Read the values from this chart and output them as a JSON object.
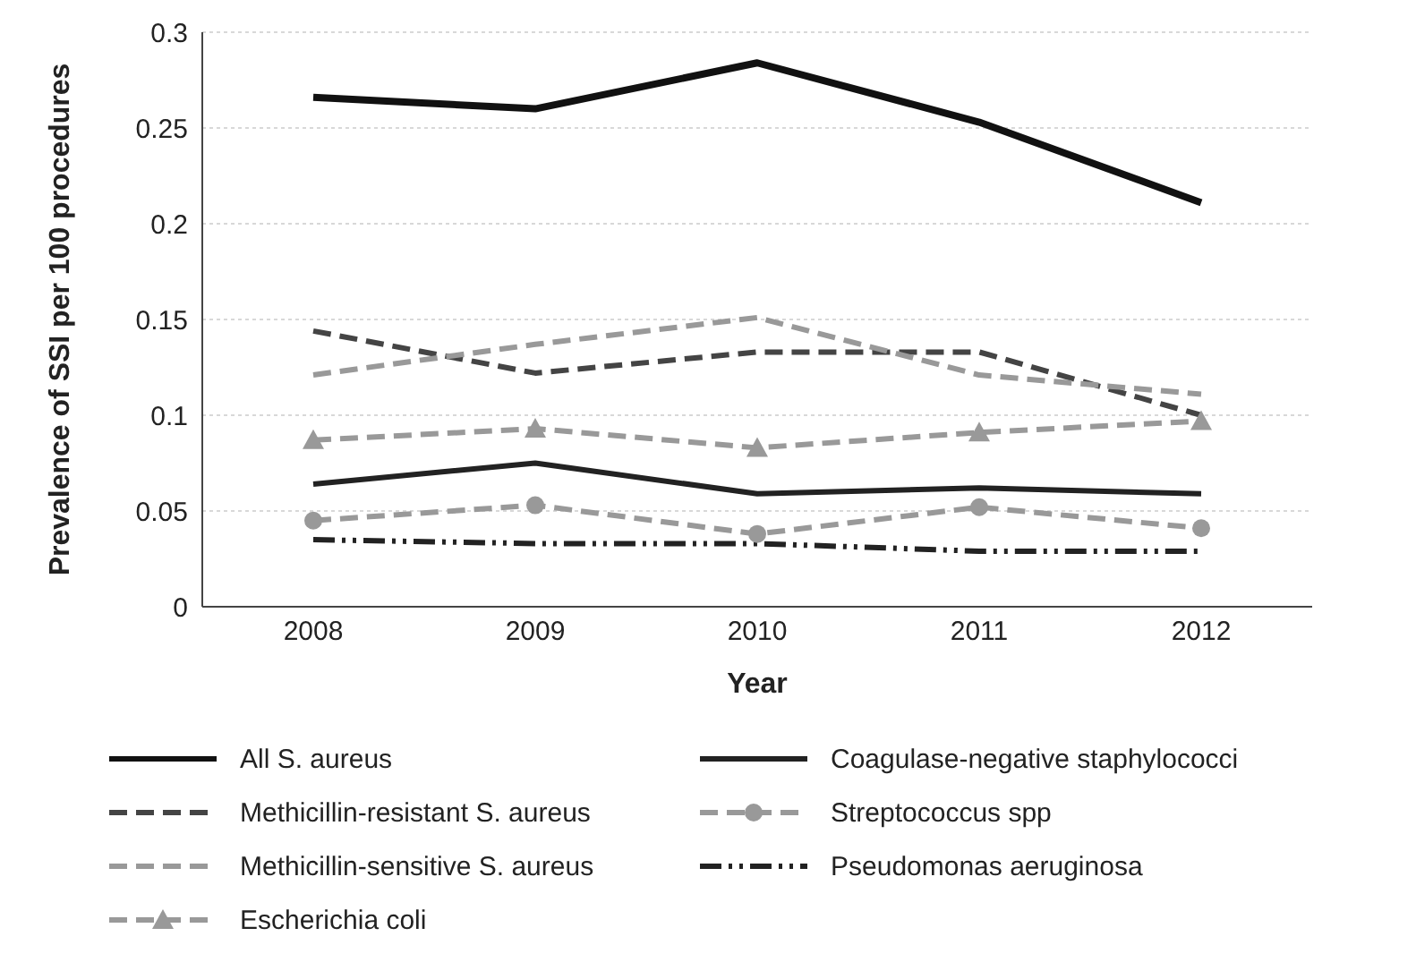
{
  "chart_data": {
    "type": "line",
    "xlabel": "Year",
    "ylabel": "Prevalence of SSI per 100 procedures",
    "categories": [
      "2008",
      "2009",
      "2010",
      "2011",
      "2012"
    ],
    "ylim": [
      0,
      0.3
    ],
    "yticks": [
      0,
      0.05,
      0.1,
      0.15,
      0.2,
      0.25,
      0.3
    ],
    "grid": "y",
    "legend": "bottom",
    "marker": "none",
    "series": [
      {
        "name": "All S. aureus",
        "color": "#111111",
        "line_style": "solid",
        "values": [
          0.266,
          0.26,
          0.284,
          0.253,
          0.211
        ]
      },
      {
        "name": "Methicillin-resistant S. aureus",
        "color": "#444444",
        "line_style": "dashed",
        "values": [
          0.144,
          0.122,
          0.133,
          0.133,
          0.1
        ]
      },
      {
        "name": "Methicillin-sensitive S. aureus",
        "color": "#999999",
        "line_style": "dashed",
        "values": [
          0.121,
          0.137,
          0.151,
          0.121,
          0.111
        ]
      },
      {
        "name": "Escherichia coli",
        "color": "#999999",
        "line_style": "dashed",
        "marker": "triangle",
        "values": [
          0.087,
          0.093,
          0.083,
          0.091,
          0.097
        ]
      },
      {
        "name": "Coagulase-negative staphylococci",
        "color": "#222222",
        "line_style": "solid",
        "values": [
          0.064,
          0.075,
          0.059,
          0.062,
          0.059
        ]
      },
      {
        "name": "Streptococcus spp",
        "color": "#999999",
        "line_style": "dashed",
        "marker": "circle",
        "values": [
          0.045,
          0.053,
          0.038,
          0.052,
          0.041
        ]
      },
      {
        "name": "Pseudomonas aeruginosa",
        "color": "#222222",
        "line_style": "dotted",
        "values": [
          0.035,
          0.033,
          0.033,
          0.029,
          0.029
        ]
      }
    ]
  }
}
